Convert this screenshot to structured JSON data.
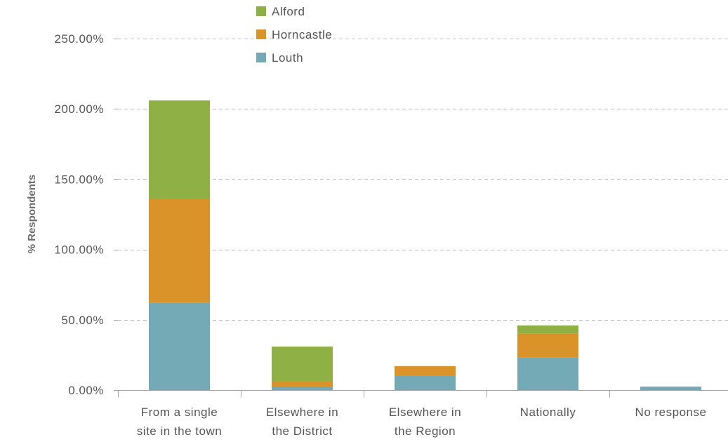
{
  "chart_data": {
    "type": "bar",
    "stacked": true,
    "title": "",
    "xlabel": "",
    "ylabel": "% Respondents",
    "ylim": [
      0,
      250
    ],
    "y_ticks": [
      0,
      50,
      100,
      150,
      200,
      250
    ],
    "y_tick_labels": [
      "0.00%",
      "50.00%",
      "100.00%",
      "150.00%",
      "200.00%",
      "250.00%"
    ],
    "grid": true,
    "legend_position": "top-center",
    "categories": [
      [
        "From a single",
        "site in the town"
      ],
      [
        "Elsewhere in",
        "the District"
      ],
      [
        "Elsewhere in",
        "the Region"
      ],
      [
        "Nationally"
      ],
      [
        "No response"
      ]
    ],
    "series": [
      {
        "name": "Louth",
        "color": "#74a9b6",
        "values": [
          62,
          2,
          10,
          23,
          2.5
        ]
      },
      {
        "name": "Horncastle",
        "color": "#d99329",
        "values": [
          74,
          4,
          7,
          17,
          0
        ]
      },
      {
        "name": "Alford",
        "color": "#8fb044",
        "values": [
          70,
          25,
          0,
          6,
          0
        ]
      }
    ],
    "legend_order": [
      "Alford",
      "Horncastle",
      "Louth"
    ]
  }
}
